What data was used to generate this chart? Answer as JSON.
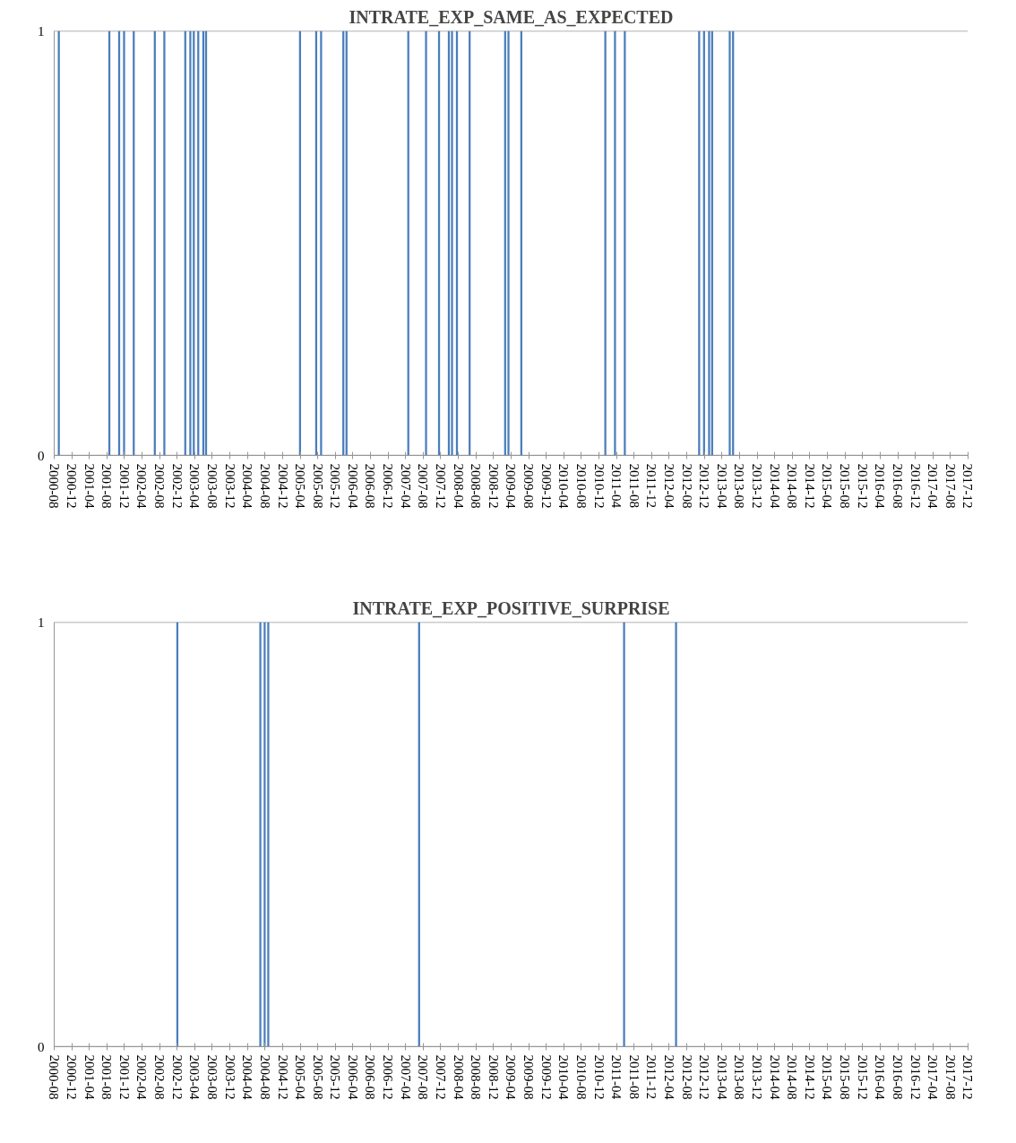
{
  "chart_data": [
    {
      "type": "bar",
      "title": "INTRATE_EXP_SAME_AS_EXPECTED",
      "x": [
        "2000-09-02",
        "2001-08-18",
        "2001-10-25",
        "2001-11-28",
        "2002-02-03",
        "2002-06-29",
        "2002-09-03",
        "2003-01-26",
        "2003-03-02",
        "2003-03-26",
        "2003-04-26",
        "2003-05-31",
        "2003-06-19",
        "2005-03-31",
        "2005-07-21",
        "2005-08-24",
        "2006-01-25",
        "2006-02-16",
        "2007-04-20",
        "2007-08-21",
        "2007-11-19",
        "2008-01-26",
        "2008-02-17",
        "2008-03-22",
        "2008-06-18",
        "2009-02-19",
        "2009-03-14",
        "2009-06-11",
        "2011-01-14",
        "2011-03-22",
        "2011-05-29",
        "2012-10-25",
        "2012-11-28",
        "2013-01-02",
        "2013-01-23",
        "2013-05-25",
        "2013-06-17"
      ],
      "values": [
        1,
        1,
        1,
        1,
        1,
        1,
        1,
        1,
        1,
        1,
        1,
        1,
        1,
        1,
        1,
        1,
        1,
        1,
        1,
        1,
        1,
        1,
        1,
        1,
        1,
        1,
        1,
        1,
        1,
        1,
        1,
        1,
        1,
        1,
        1,
        1,
        1
      ],
      "color": "#4a7ebb",
      "ylim": [
        0,
        1
      ],
      "yticks": [
        0,
        1
      ],
      "xlim": [
        "2000-08",
        "2017-12"
      ],
      "xticks": [
        "2000-08",
        "2000-12",
        "2001-04",
        "2001-08",
        "2001-12",
        "2002-04",
        "2002-08",
        "2002-12",
        "2003-04",
        "2003-08",
        "2003-12",
        "2004-04",
        "2004-08",
        "2004-12",
        "2005-04",
        "2005-08",
        "2005-12",
        "2006-04",
        "2006-08",
        "2006-12",
        "2007-04",
        "2007-08",
        "2007-12",
        "2008-04",
        "2008-08",
        "2008-12",
        "2009-04",
        "2009-08",
        "2009-12",
        "2010-04",
        "2010-08",
        "2010-12",
        "2011-04",
        "2011-08",
        "2011-12",
        "2012-04",
        "2012-08",
        "2012-12",
        "2013-04",
        "2013-08",
        "2013-12",
        "2014-04",
        "2014-08",
        "2014-12",
        "2015-04",
        "2015-08",
        "2015-12",
        "2016-04",
        "2016-08",
        "2016-12",
        "2017-04",
        "2017-08",
        "2017-12"
      ],
      "grid": "y"
    },
    {
      "type": "bar",
      "title": "INTRATE_EXP_POSITIVE_SURPRISE",
      "x": [
        "2002-12-02",
        "2004-06-29",
        "2004-07-29",
        "2004-08-23",
        "2007-07-04",
        "2011-05-24",
        "2012-05-18"
      ],
      "values": [
        1,
        1,
        1,
        1,
        1,
        1,
        1
      ],
      "color": "#4a7ebb",
      "ylim": [
        0,
        1
      ],
      "yticks": [
        0,
        1
      ],
      "xlim": [
        "2000-08",
        "2017-12"
      ],
      "xticks": [
        "2000-08",
        "2000-12",
        "2001-04",
        "2001-08",
        "2001-12",
        "2002-04",
        "2002-08",
        "2002-12",
        "2003-04",
        "2003-08",
        "2003-12",
        "2004-04",
        "2004-08",
        "2004-12",
        "2005-04",
        "2005-08",
        "2005-12",
        "2006-04",
        "2006-08",
        "2006-12",
        "2007-04",
        "2007-08",
        "2007-12",
        "2008-04",
        "2008-08",
        "2008-12",
        "2009-04",
        "2009-08",
        "2009-12",
        "2010-04",
        "2010-08",
        "2010-12",
        "2011-04",
        "2011-08",
        "2011-12",
        "2012-04",
        "2012-08",
        "2012-12",
        "2013-04",
        "2013-08",
        "2013-12",
        "2014-04",
        "2014-08",
        "2014-12",
        "2015-04",
        "2015-08",
        "2015-12",
        "2016-04",
        "2016-08",
        "2016-12",
        "2017-04",
        "2017-08",
        "2017-12"
      ],
      "grid": "y"
    }
  ]
}
